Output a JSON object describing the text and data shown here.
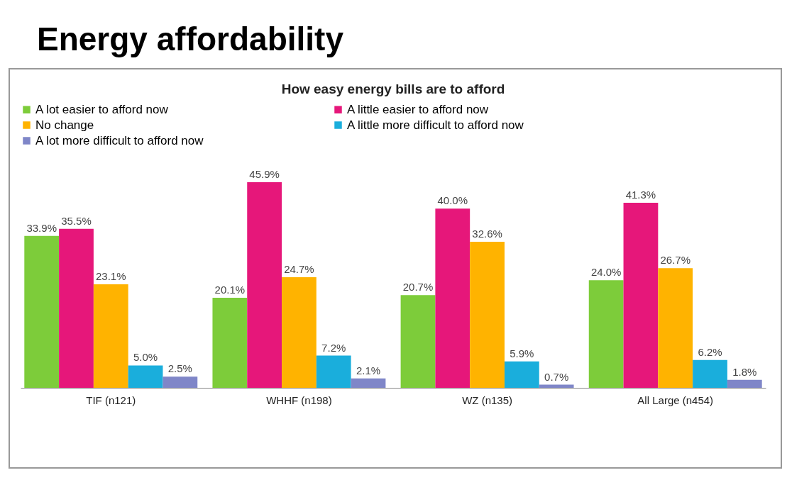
{
  "chart_data": {
    "type": "bar",
    "title": "Energy affordability",
    "subtitle": "How easy energy bills are to afford",
    "categories": [
      "TIF (n121)",
      "WHHF (n198)",
      "WZ (n135)",
      "All Large (n454)"
    ],
    "series": [
      {
        "name": "A lot easier to afford now",
        "color": "#7dcc3a",
        "values": [
          33.9,
          20.1,
          20.7,
          24.0
        ],
        "value_labels": [
          "33.9%",
          "20.1%",
          "20.7%",
          "24.0%"
        ]
      },
      {
        "name": "A little easier to afford now",
        "color": "#e6177a",
        "values": [
          35.5,
          45.9,
          40.0,
          41.3
        ],
        "value_labels": [
          "35.5%",
          "45.9%",
          "40.0%",
          "41.3%"
        ]
      },
      {
        "name": "No change",
        "color": "#ffb300",
        "values": [
          23.1,
          24.7,
          32.6,
          26.7
        ],
        "value_labels": [
          "23.1%",
          "24.7%",
          "32.6%",
          "26.7%"
        ]
      },
      {
        "name": "A little more difficult to afford now",
        "color": "#1aaedc",
        "values": [
          5.0,
          7.2,
          5.9,
          6.2
        ],
        "value_labels": [
          "5.0%",
          "7.2%",
          "5.9%",
          "6.2%"
        ]
      },
      {
        "name": "A lot more difficult to afford now",
        "color": "#7f86c8",
        "values": [
          2.5,
          2.1,
          0.7,
          1.8
        ],
        "value_labels": [
          "2.5%",
          "2.1%",
          "0.7%",
          "1.8%"
        ]
      }
    ],
    "legend": "top",
    "grid": false
  }
}
